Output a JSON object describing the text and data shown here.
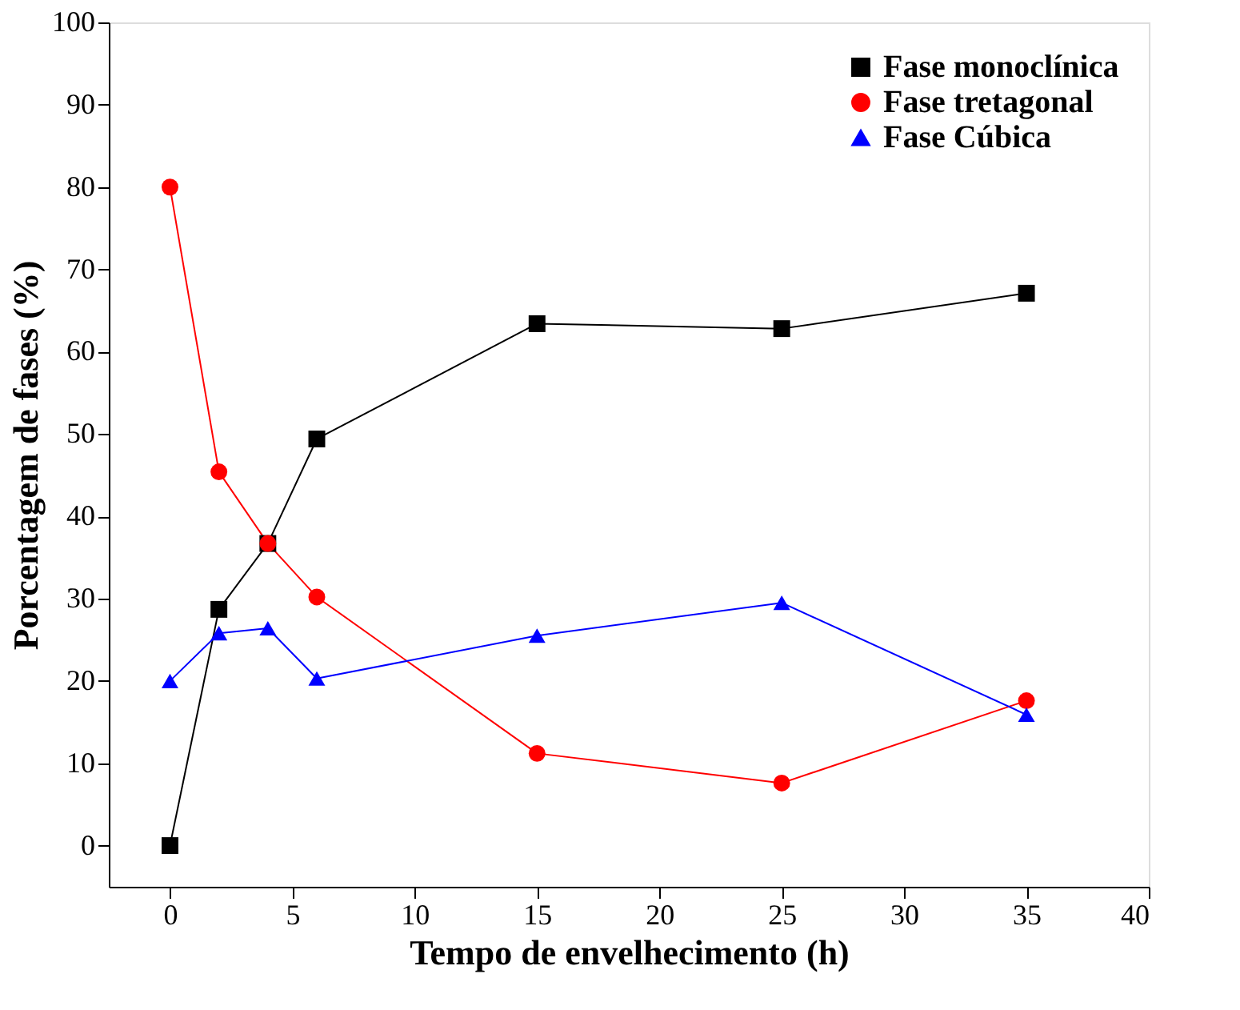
{
  "chart_data": {
    "type": "line",
    "xlabel": "Tempo de envelhecimento (h)",
    "ylabel": "Porcentagem de fases (%)",
    "x": [
      0,
      2,
      4,
      6,
      15,
      25,
      35
    ],
    "series": [
      {
        "name": "Fase monoclínica",
        "color": "#000000",
        "marker": "square",
        "values": [
          0,
          28.7,
          36.7,
          49.4,
          63.4,
          62.8,
          67.1
        ]
      },
      {
        "name": "Fase tretagonal",
        "color": "#ff0000",
        "marker": "circle",
        "values": [
          80,
          45.4,
          36.7,
          30.2,
          11.2,
          7.6,
          17.6
        ]
      },
      {
        "name": "Fase Cúbica",
        "color": "#0000ff",
        "marker": "triangle",
        "values": [
          20,
          25.8,
          26.4,
          20.3,
          25.5,
          29.5,
          15.9
        ]
      }
    ],
    "xlim": [
      -2.5,
      40
    ],
    "xticks": [
      0,
      5,
      10,
      15,
      20,
      25,
      30,
      35,
      40
    ],
    "ylim": [
      -5,
      100
    ],
    "yticks": [
      0,
      10,
      20,
      30,
      40,
      50,
      60,
      70,
      80,
      90,
      100
    ],
    "grid": false,
    "legend": "top right",
    "line_style": "solid"
  }
}
